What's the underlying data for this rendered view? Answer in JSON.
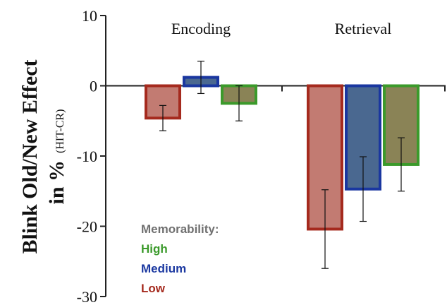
{
  "chart_data": {
    "type": "bar",
    "ylabel": "Blink Old/New Effect",
    "ylabel_line2": "in %",
    "ylabel_note": "(HIT-CR)",
    "ylim": [
      -30,
      10
    ],
    "yticks": [
      "10",
      "0",
      "-10",
      "-20",
      "-30"
    ],
    "categories": [
      "Encoding",
      "Retrieval"
    ],
    "legend": {
      "title": "Memorability:",
      "placement": "lower-left"
    },
    "series": [
      {
        "name": "High",
        "values": [
          -2.5,
          -11.2
        ],
        "errors": [
          2.5,
          3.8
        ],
        "color": "#3b9a2b",
        "fill": "#8a8356"
      },
      {
        "name": "Medium",
        "values": [
          1.2,
          -14.7
        ],
        "errors": [
          2.3,
          4.6
        ],
        "color": "#1a37a0",
        "fill": "#4a6890"
      },
      {
        "name": "Low",
        "values": [
          -4.6,
          -20.4
        ],
        "errors": [
          1.8,
          5.6
        ],
        "color": "#a52a1e",
        "fill": "#c27b72"
      }
    ],
    "bar_order": [
      "Low",
      "Medium",
      "High"
    ],
    "legend_title_color": "#707070",
    "grid": false
  }
}
